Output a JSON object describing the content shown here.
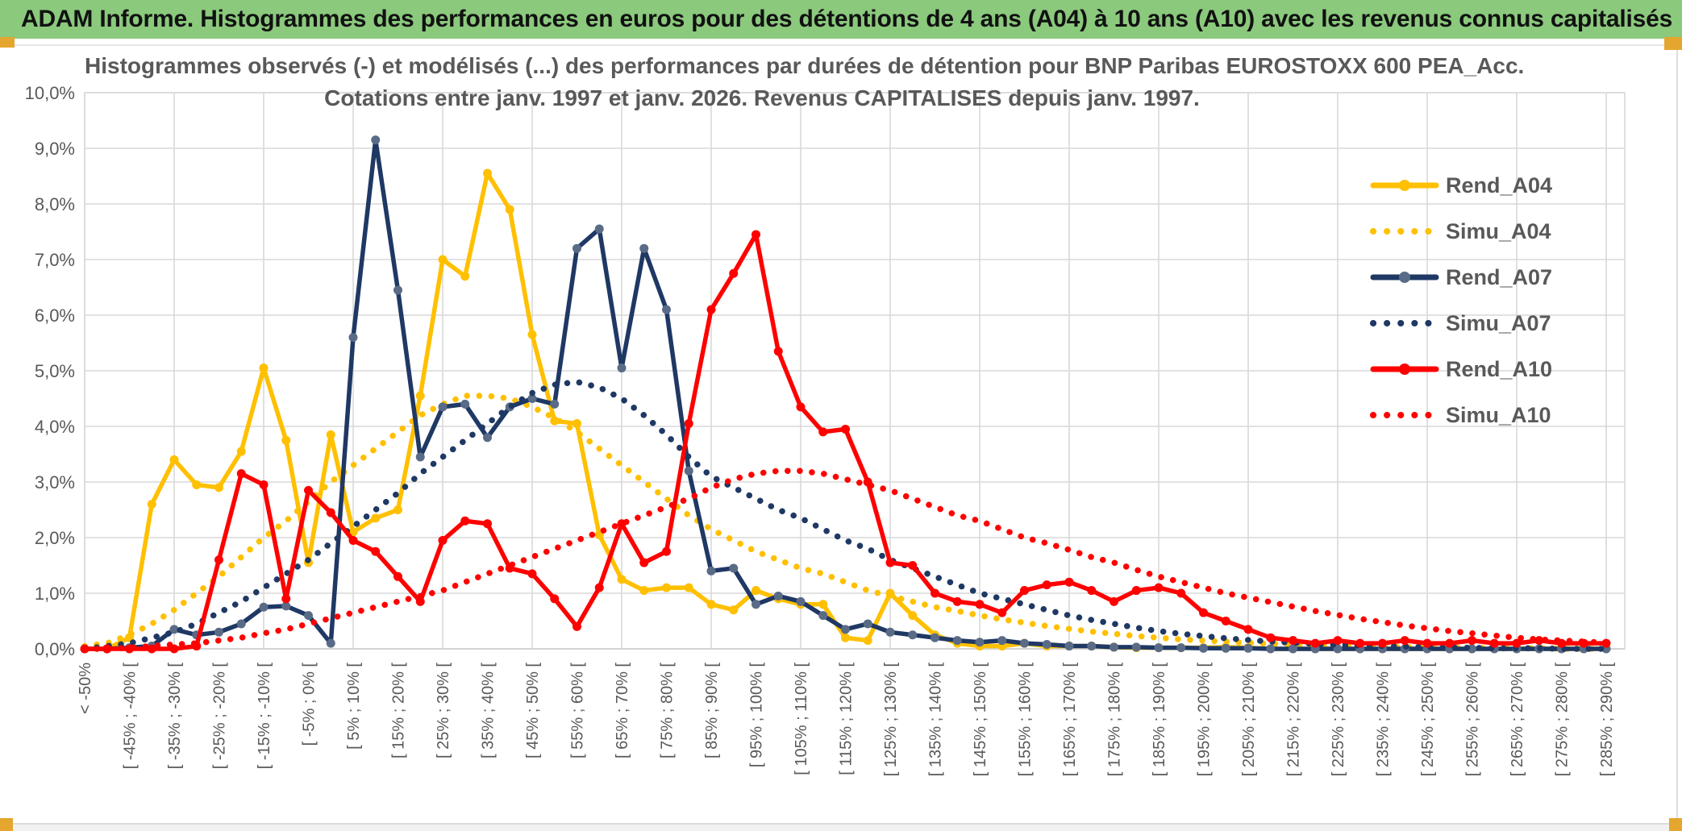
{
  "banner": {
    "text": "ADAM Informe. Histogrammes des performances en euros pour des détentions de 4 ans (A04) à 10 ans (A10) avec les revenus connus capitalisés",
    "bg_color": "#8BC97D",
    "handle_color": "#E4A62F"
  },
  "chart_data": {
    "type": "line",
    "title": "Histogrammes observés (-) et modélisés (...) des performances par durées de détention pour BNP Paribas EUROSTOXX 600 PEA_Acc.",
    "subtitle": "Cotations entre janv. 1997 et janv. 2026. Revenus CAPITALISES depuis janv. 1997.",
    "ylabel": "",
    "xlabel": "",
    "ylim": [
      0,
      10
    ],
    "grid": true,
    "legend_position": "right-inside",
    "y_ticks": [
      "0,0%",
      "1,0%",
      "2,0%",
      "3,0%",
      "4,0%",
      "5,0%",
      "6,0%",
      "7,0%",
      "8,0%",
      "9,0%",
      "10,0%"
    ],
    "bin_width_pct": 5,
    "labels_every_n_bins": 2,
    "categories": [
      "< -50%",
      "[ -45% ; -40% [",
      "[ -35% ; -30% [",
      "[ -25% ; -20% [",
      "[ -15% ; -10% [",
      "[ -5% ; 0% [",
      "[ 5% ; 10% [",
      "[ 15% ; 20% [",
      "[ 25% ; 30% [",
      "[ 35% ; 40% [",
      "[ 45% ; 50% [",
      "[ 55% ; 60% [",
      "[ 65% ; 70% [",
      "[ 75% ; 80% [",
      "[ 85% ; 90% [",
      "[ 95% ; 100% [",
      "[ 105% ; 110% [",
      "[ 115% ; 120% [",
      "[ 125% ; 130% [",
      "[ 135% ; 140% [",
      "[ 145% ; 150% [",
      "[ 155% ; 160% [",
      "[ 165% ; 170% [",
      "[ 175% ; 180% [",
      "[ 185% ; 190% [",
      "[ 195% ; 200% [",
      "[ 205% ; 210% [",
      "[ 215% ; 220% [",
      "[ 225% ; 230% [",
      "[ 235% ; 240% [",
      "[ 245% ; 250% [",
      "[ 255% ; 260% [",
      "[ 265% ; 270% [",
      "[ 275% ; 280% [",
      "[ 285% ; 290% ["
    ],
    "colors": {
      "gold": "#FFC000",
      "navy": "#1F3864",
      "navy_marker": "#5A6B87",
      "red": "#FF0000",
      "grid": "#D9D9D9",
      "axis": "#BFBFBF",
      "text": "#595959"
    },
    "series": [
      {
        "name": "Rend_A04",
        "color": "#FFC000",
        "marker_color": "#FFC000",
        "style": "solid",
        "values": [
          0,
          0,
          0.2,
          2.6,
          3.4,
          2.95,
          2.9,
          3.55,
          5.05,
          3.75,
          1.55,
          3.85,
          2.1,
          2.35,
          2.5,
          4.55,
          7.0,
          6.7,
          8.55,
          7.9,
          5.65,
          4.1,
          4.05,
          2.05,
          1.25,
          1.05,
          1.1,
          1.1,
          0.8,
          0.7,
          1.05,
          0.9,
          0.8,
          0.8,
          0.2,
          0.15,
          1.0,
          0.6,
          0.25,
          0.1,
          0.05,
          0.05,
          0.1,
          0.05,
          0.05,
          0.05,
          0.03,
          0.02,
          0.02,
          0.02,
          0.02,
          0.03,
          0.02,
          0,
          0,
          0,
          0,
          0,
          0,
          0,
          0,
          0,
          0,
          0,
          0,
          0,
          0,
          0,
          0
        ]
      },
      {
        "name": "Simu_A04",
        "color": "#FFC000",
        "style": "dotted",
        "values": [
          0.05,
          0.1,
          0.25,
          0.45,
          0.7,
          1.0,
          1.3,
          1.65,
          2.0,
          2.3,
          2.65,
          3.0,
          3.3,
          3.6,
          3.9,
          4.2,
          4.4,
          4.55,
          4.55,
          4.5,
          4.35,
          4.15,
          3.9,
          3.6,
          3.3,
          3.0,
          2.7,
          2.4,
          2.15,
          1.95,
          1.75,
          1.6,
          1.45,
          1.35,
          1.2,
          1.05,
          0.95,
          0.85,
          0.75,
          0.68,
          0.6,
          0.53,
          0.47,
          0.41,
          0.36,
          0.31,
          0.27,
          0.23,
          0.2,
          0.17,
          0.15,
          0.13,
          0.11,
          0.09,
          0.08,
          0.07,
          0.06,
          0.05,
          0.04,
          0.03,
          0.03,
          0.02,
          0.02,
          0.01,
          0.01,
          0.01,
          0,
          0,
          0
        ]
      },
      {
        "name": "Rend_A07",
        "color": "#1F3864",
        "marker_color": "#5A6B87",
        "style": "solid",
        "values": [
          0,
          0,
          0.02,
          0.05,
          0.35,
          0.25,
          0.3,
          0.45,
          0.75,
          0.77,
          0.6,
          0.1,
          5.6,
          9.15,
          6.45,
          3.45,
          4.35,
          4.4,
          3.8,
          4.35,
          4.5,
          4.4,
          7.2,
          7.55,
          5.05,
          7.2,
          6.1,
          3.2,
          1.4,
          1.45,
          0.8,
          0.95,
          0.85,
          0.6,
          0.35,
          0.45,
          0.3,
          0.25,
          0.2,
          0.15,
          0.12,
          0.15,
          0.1,
          0.08,
          0.05,
          0.05,
          0.03,
          0.03,
          0.02,
          0.02,
          0.01,
          0.01,
          0.01,
          0,
          0,
          0,
          0,
          0,
          0,
          0,
          0,
          0,
          0,
          0,
          0,
          0,
          0,
          0,
          0
        ]
      },
      {
        "name": "Simu_A07",
        "color": "#1F3864",
        "style": "dotted",
        "values": [
          0,
          0.05,
          0.1,
          0.2,
          0.3,
          0.45,
          0.65,
          0.85,
          1.1,
          1.35,
          1.6,
          1.9,
          2.2,
          2.5,
          2.8,
          3.15,
          3.45,
          3.75,
          4.05,
          4.35,
          4.6,
          4.75,
          4.8,
          4.7,
          4.5,
          4.2,
          3.85,
          3.45,
          3.1,
          2.9,
          2.7,
          2.5,
          2.35,
          2.15,
          1.95,
          1.8,
          1.6,
          1.45,
          1.3,
          1.15,
          1.0,
          0.9,
          0.8,
          0.7,
          0.6,
          0.52,
          0.45,
          0.38,
          0.32,
          0.27,
          0.23,
          0.19,
          0.16,
          0.13,
          0.11,
          0.09,
          0.07,
          0.06,
          0.05,
          0.04,
          0.03,
          0.02,
          0.02,
          0.01,
          0.01,
          0.01,
          0,
          0,
          0
        ]
      },
      {
        "name": "Rend_A10",
        "color": "#FF0000",
        "marker_color": "#FF0000",
        "style": "solid",
        "values": [
          0,
          0,
          0,
          0,
          0,
          0.05,
          1.6,
          3.15,
          2.95,
          0.9,
          2.85,
          2.45,
          1.95,
          1.75,
          1.3,
          0.85,
          1.95,
          2.3,
          2.25,
          1.45,
          1.35,
          0.9,
          0.4,
          1.1,
          2.25,
          1.55,
          1.75,
          4.05,
          6.1,
          6.75,
          7.45,
          5.35,
          4.35,
          3.9,
          3.95,
          3.0,
          1.55,
          1.5,
          1.0,
          0.85,
          0.8,
          0.65,
          1.05,
          1.15,
          1.2,
          1.05,
          0.85,
          1.05,
          1.1,
          1.0,
          0.65,
          0.5,
          0.35,
          0.2,
          0.15,
          0.1,
          0.15,
          0.1,
          0.1,
          0.15,
          0.1,
          0.1,
          0.15,
          0.1,
          0.1,
          0.15,
          0.1,
          0.1,
          0.1
        ]
      },
      {
        "name": "Simu_A10",
        "color": "#FF0000",
        "style": "dotted",
        "values": [
          0,
          0,
          0.02,
          0.05,
          0.08,
          0.1,
          0.15,
          0.2,
          0.28,
          0.35,
          0.45,
          0.55,
          0.65,
          0.75,
          0.85,
          0.95,
          1.05,
          1.2,
          1.35,
          1.5,
          1.65,
          1.8,
          1.95,
          2.1,
          2.25,
          2.4,
          2.55,
          2.7,
          2.9,
          3.05,
          3.15,
          3.2,
          3.2,
          3.15,
          3.05,
          2.95,
          2.85,
          2.7,
          2.55,
          2.4,
          2.3,
          2.15,
          2.0,
          1.9,
          1.78,
          1.65,
          1.55,
          1.42,
          1.3,
          1.2,
          1.1,
          1.0,
          0.92,
          0.84,
          0.76,
          0.68,
          0.61,
          0.54,
          0.48,
          0.42,
          0.37,
          0.32,
          0.28,
          0.24,
          0.2,
          0.17,
          0.15,
          0.13,
          0.11
        ]
      }
    ]
  }
}
